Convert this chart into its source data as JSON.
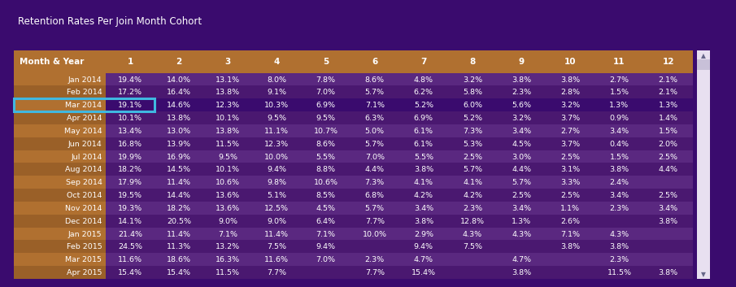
{
  "title": "Retention Rates Per Join Month Cohort",
  "header": [
    "Month & Year",
    "1",
    "2",
    "3",
    "4",
    "5",
    "6",
    "7",
    "8",
    "9",
    "10",
    "11",
    "12"
  ],
  "rows": [
    [
      "Jan 2014",
      "19.4%",
      "14.0%",
      "13.1%",
      "8.0%",
      "7.8%",
      "8.6%",
      "4.8%",
      "3.2%",
      "3.8%",
      "3.8%",
      "2.7%",
      "2.1%"
    ],
    [
      "Feb 2014",
      "17.2%",
      "16.4%",
      "13.8%",
      "9.1%",
      "7.0%",
      "5.7%",
      "6.2%",
      "5.8%",
      "2.3%",
      "2.8%",
      "1.5%",
      "2.1%"
    ],
    [
      "Mar 2014",
      "19.1%",
      "14.6%",
      "12.3%",
      "10.3%",
      "6.9%",
      "7.1%",
      "5.2%",
      "6.0%",
      "5.6%",
      "3.2%",
      "1.3%",
      "1.3%"
    ],
    [
      "Apr 2014",
      "10.1%",
      "13.8%",
      "10.1%",
      "9.5%",
      "9.5%",
      "6.3%",
      "6.9%",
      "5.2%",
      "3.2%",
      "3.7%",
      "0.9%",
      "1.4%"
    ],
    [
      "May 2014",
      "13.4%",
      "13.0%",
      "13.8%",
      "11.1%",
      "10.7%",
      "5.0%",
      "6.1%",
      "7.3%",
      "3.4%",
      "2.7%",
      "3.4%",
      "1.5%"
    ],
    [
      "Jun 2014",
      "16.8%",
      "13.9%",
      "11.5%",
      "12.3%",
      "8.6%",
      "5.7%",
      "6.1%",
      "5.3%",
      "4.5%",
      "3.7%",
      "0.4%",
      "2.0%"
    ],
    [
      "Jul 2014",
      "19.9%",
      "16.9%",
      "9.5%",
      "10.0%",
      "5.5%",
      "7.0%",
      "5.5%",
      "2.5%",
      "3.0%",
      "2.5%",
      "1.5%",
      "2.5%"
    ],
    [
      "Aug 2014",
      "18.2%",
      "14.5%",
      "10.1%",
      "9.4%",
      "8.8%",
      "4.4%",
      "3.8%",
      "5.7%",
      "4.4%",
      "3.1%",
      "3.8%",
      "4.4%"
    ],
    [
      "Sep 2014",
      "17.9%",
      "11.4%",
      "10.6%",
      "9.8%",
      "10.6%",
      "7.3%",
      "4.1%",
      "4.1%",
      "5.7%",
      "3.3%",
      "2.4%",
      ""
    ],
    [
      "Oct 2014",
      "19.5%",
      "14.4%",
      "13.6%",
      "5.1%",
      "8.5%",
      "6.8%",
      "4.2%",
      "4.2%",
      "2.5%",
      "2.5%",
      "3.4%",
      "2.5%"
    ],
    [
      "Nov 2014",
      "19.3%",
      "18.2%",
      "13.6%",
      "12.5%",
      "4.5%",
      "5.7%",
      "3.4%",
      "2.3%",
      "3.4%",
      "1.1%",
      "2.3%",
      "3.4%"
    ],
    [
      "Dec 2014",
      "14.1%",
      "20.5%",
      "9.0%",
      "9.0%",
      "6.4%",
      "7.7%",
      "3.8%",
      "12.8%",
      "1.3%",
      "2.6%",
      "",
      "3.8%"
    ],
    [
      "Jan 2015",
      "21.4%",
      "11.4%",
      "7.1%",
      "11.4%",
      "7.1%",
      "10.0%",
      "2.9%",
      "4.3%",
      "4.3%",
      "7.1%",
      "4.3%",
      ""
    ],
    [
      "Feb 2015",
      "24.5%",
      "11.3%",
      "13.2%",
      "7.5%",
      "9.4%",
      "",
      "9.4%",
      "7.5%",
      "",
      "3.8%",
      "3.8%",
      ""
    ],
    [
      "Mar 2015",
      "11.6%",
      "18.6%",
      "16.3%",
      "11.6%",
      "7.0%",
      "2.3%",
      "4.7%",
      "",
      "4.7%",
      "",
      "2.3%",
      ""
    ],
    [
      "Apr 2015",
      "15.4%",
      "15.4%",
      "11.5%",
      "7.7%",
      "",
      "7.7%",
      "15.4%",
      "",
      "3.8%",
      "",
      "11.5%",
      "3.8%"
    ]
  ],
  "highlighted_row": 2,
  "bg_color": "#3a0b6e",
  "header_bg": "#b07030",
  "label_col_bg_odd": "#b07030",
  "label_col_bg_even": "#9a6028",
  "data_col_bg_odd": "#5a2880",
  "data_col_bg_even": "#4a1870",
  "row_hl_label_bg": "#b07030",
  "row_hl_data_bg": "#3a0b6e",
  "text_color": "#ffffff",
  "highlight_border_color": "#40b8e0",
  "scrollbar_track": "#e8e0f0",
  "scrollbar_thumb": "#c8c0d8",
  "title_color": "#ffffff",
  "title_fontsize": 8.5,
  "cell_fontsize": 6.8,
  "header_fontsize": 7.5,
  "col_widths_rel": [
    1.65,
    0.88,
    0.88,
    0.88,
    0.88,
    0.88,
    0.88,
    0.88,
    0.88,
    0.88,
    0.88,
    0.88,
    0.88
  ]
}
